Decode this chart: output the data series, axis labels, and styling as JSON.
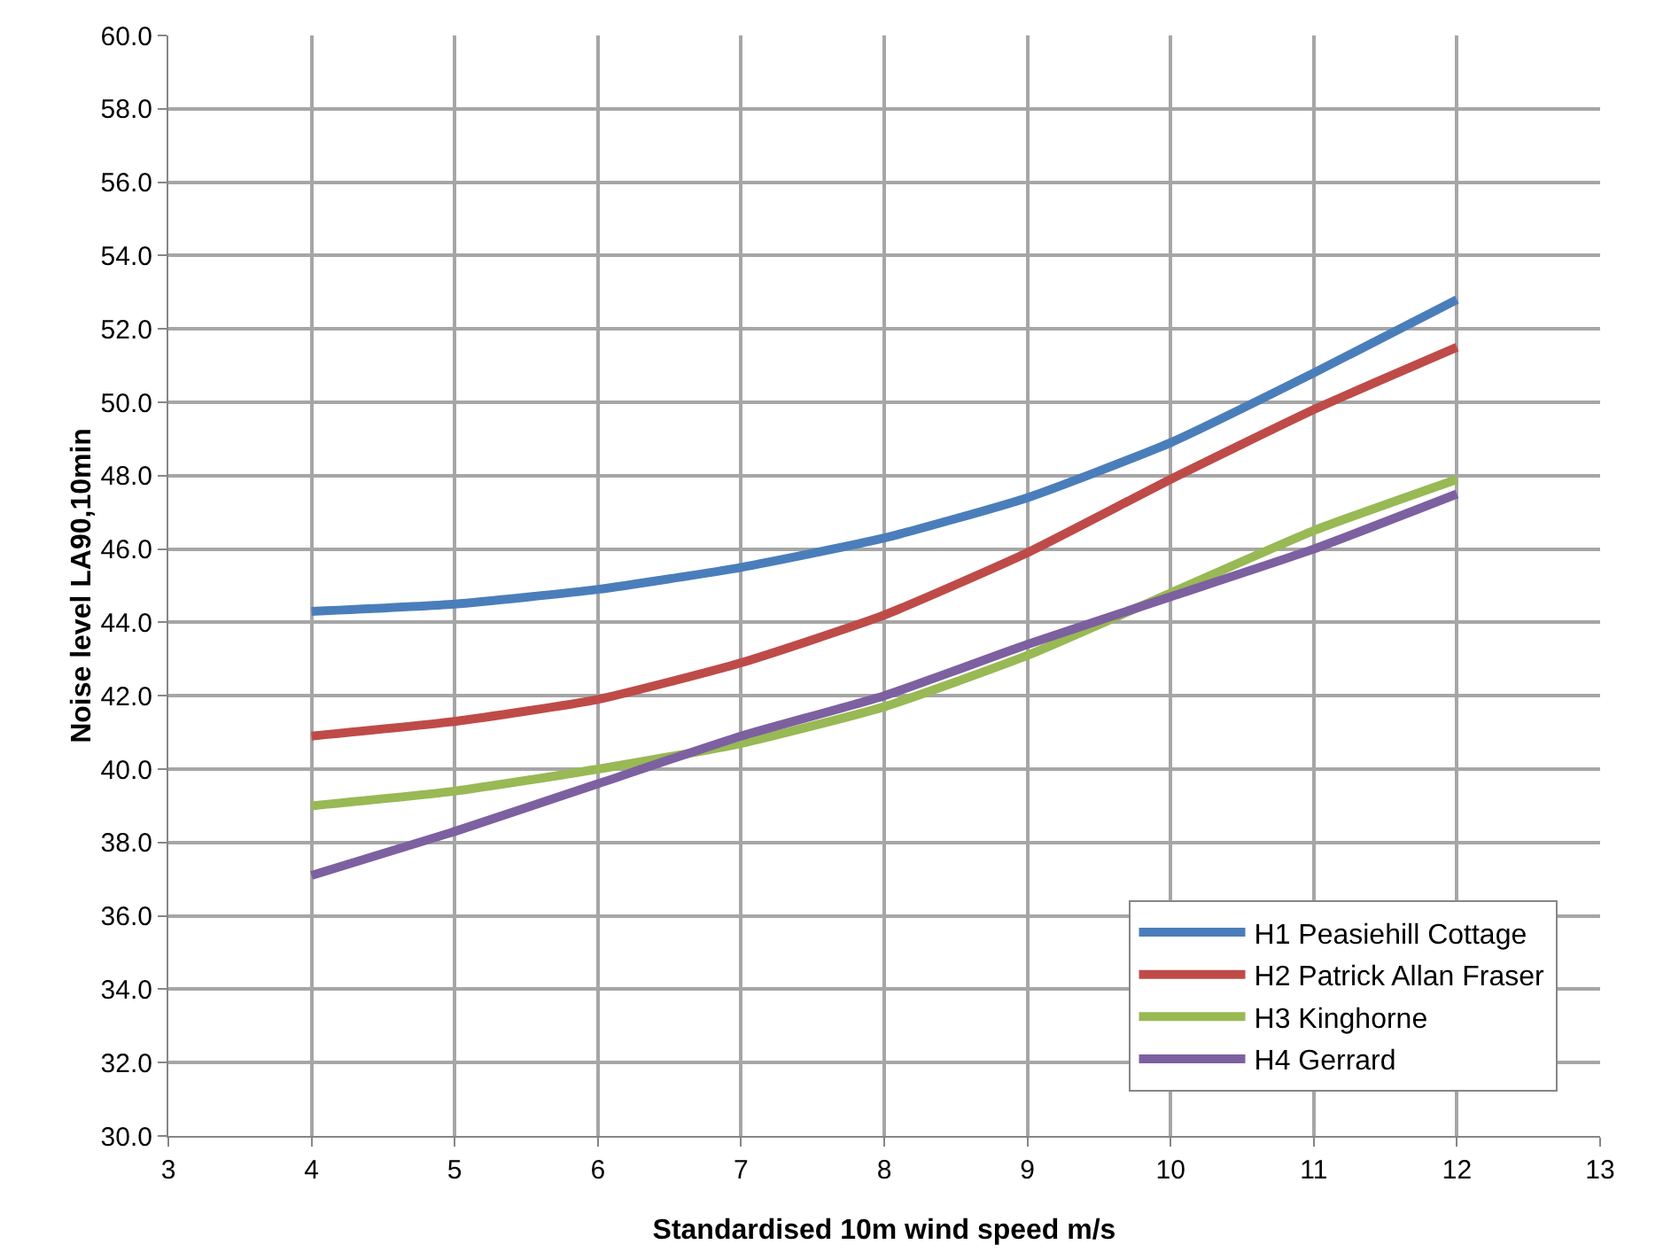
{
  "chart_data": {
    "type": "line",
    "xlabel": "Standardised 10m wind speed m/s",
    "ylabel": "Noise level LA90,10min",
    "x": [
      4,
      5,
      6,
      7,
      8,
      9,
      10,
      11,
      12
    ],
    "series": [
      {
        "name": "H1 Peasiehill Cottage",
        "color": "#4a7ebb",
        "values": [
          44.3,
          44.5,
          44.9,
          45.5,
          46.3,
          47.4,
          48.9,
          50.8,
          52.8
        ]
      },
      {
        "name": "H2 Patrick Allan Fraser",
        "color": "#be4b48",
        "values": [
          40.9,
          41.3,
          41.9,
          42.9,
          44.2,
          45.9,
          47.9,
          49.8,
          51.5
        ]
      },
      {
        "name": "H3 Kinghorne",
        "color": "#98b954",
        "values": [
          39.0,
          39.4,
          40.0,
          40.7,
          41.7,
          43.1,
          44.8,
          46.5,
          47.9
        ]
      },
      {
        "name": "H4 Gerrard",
        "color": "#7d60a0",
        "values": [
          37.1,
          38.3,
          39.6,
          40.9,
          42.0,
          43.4,
          44.7,
          46.0,
          47.5
        ]
      }
    ],
    "xlim": [
      3,
      13
    ],
    "xticks": [
      3,
      4,
      5,
      6,
      7,
      8,
      9,
      10,
      11,
      12,
      13
    ],
    "ylim": [
      30,
      60
    ],
    "yticks": [
      {
        "value": 30,
        "label": "30.0"
      },
      {
        "value": 32,
        "label": "32.0"
      },
      {
        "value": 34,
        "label": "34.0"
      },
      {
        "value": 36,
        "label": "36.0"
      },
      {
        "value": 38,
        "label": "38.0"
      },
      {
        "value": 40,
        "label": "40.0"
      },
      {
        "value": 42,
        "label": "42.0"
      },
      {
        "value": 44,
        "label": "44.0"
      },
      {
        "value": 46,
        "label": "46.0"
      },
      {
        "value": 48,
        "label": "48.0"
      },
      {
        "value": 50,
        "label": "50.0"
      },
      {
        "value": 52,
        "label": "52.0"
      },
      {
        "value": 54,
        "label": "54.0"
      },
      {
        "value": 56,
        "label": "56.0"
      },
      {
        "value": 58,
        "label": "58.0"
      },
      {
        "value": 60,
        "label": "60.0"
      }
    ],
    "grid": true,
    "legend": "bottom right",
    "marker": "none",
    "line_style": "solid"
  }
}
